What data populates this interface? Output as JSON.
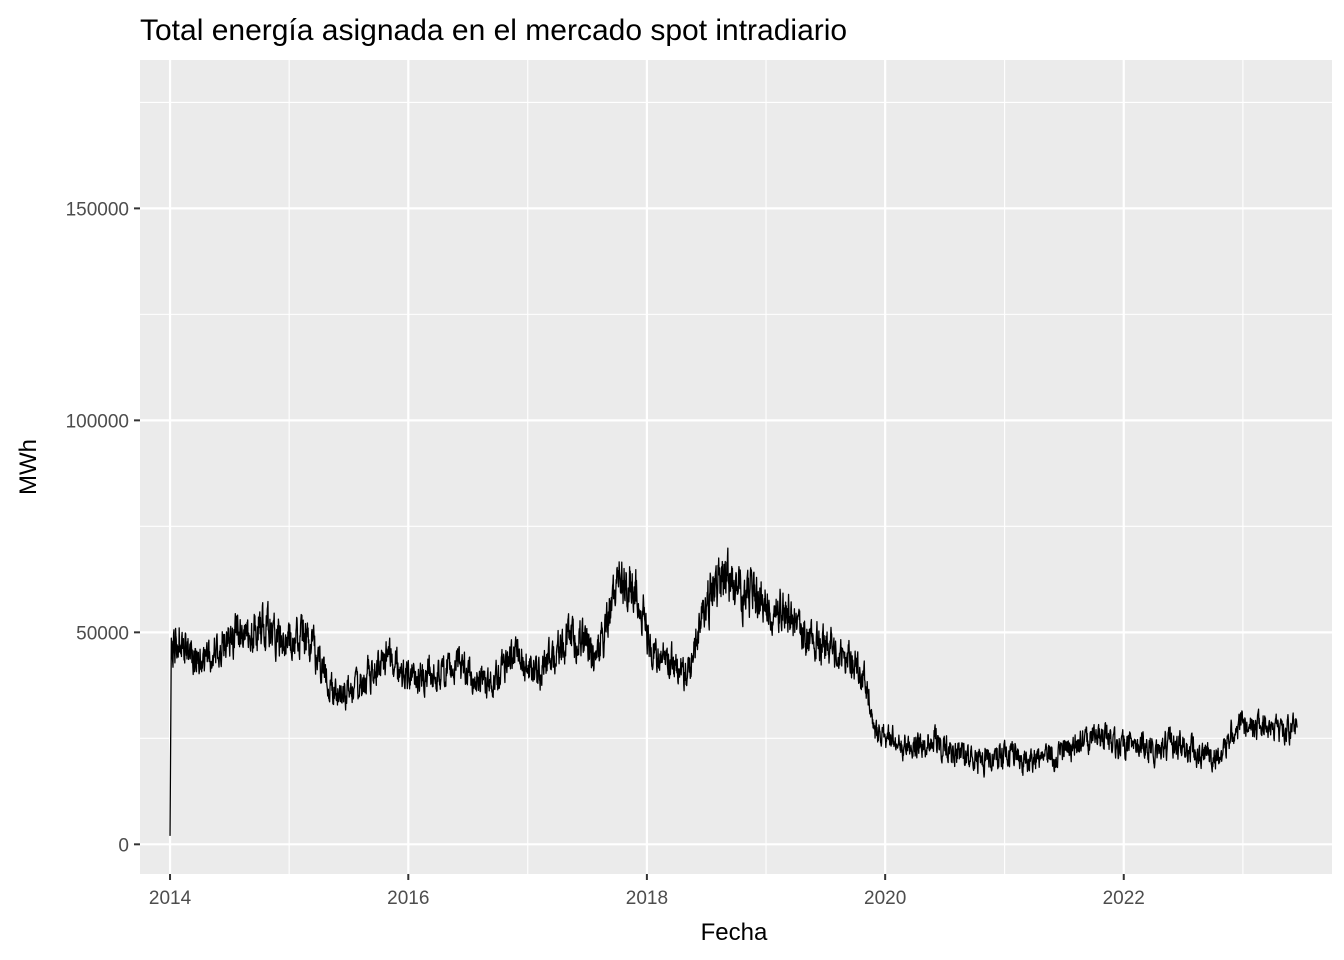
{
  "chart_data": {
    "type": "line",
    "title": "Total energía asignada en el mercado spot intradiario",
    "xlabel": "Fecha",
    "ylabel": "MWh",
    "x_ticks": [
      "2014",
      "2016",
      "2018",
      "2020",
      "2022"
    ],
    "y_ticks": [
      "0",
      "50000",
      "100000",
      "150000"
    ],
    "xlim": [
      "2013-10-01",
      "2023-10-01"
    ],
    "ylim": [
      -7000,
      185000
    ],
    "grid": true,
    "panel_background": "#EBEBEB",
    "line_color": "#000000",
    "series": [
      {
        "x": [
          "2014-01-01",
          "2014-01-05",
          "2014-02-01",
          "2014-03-01",
          "2014-04-01",
          "2014-05-01",
          "2014-06-01",
          "2014-07-01",
          "2014-08-01",
          "2014-09-01",
          "2014-10-01",
          "2014-11-01",
          "2014-12-01",
          "2015-01-01",
          "2015-02-01",
          "2015-03-01",
          "2015-04-01",
          "2015-05-01",
          "2015-06-01",
          "2015-07-01",
          "2015-08-01",
          "2015-09-01",
          "2015-10-01",
          "2015-11-01",
          "2015-12-01",
          "2016-01-01",
          "2016-02-01",
          "2016-03-01",
          "2016-04-01",
          "2016-05-01",
          "2016-06-01",
          "2016-07-01",
          "2016-08-01",
          "2016-09-01",
          "2016-10-01",
          "2016-11-01",
          "2016-12-01",
          "2017-01-01",
          "2017-02-01",
          "2017-03-01",
          "2017-04-01",
          "2017-05-01",
          "2017-06-01",
          "2017-07-01",
          "2017-08-01",
          "2017-09-01",
          "2017-10-01",
          "2017-11-01",
          "2017-12-01",
          "2018-01-01",
          "2018-02-01",
          "2018-03-01",
          "2018-04-01",
          "2018-05-01",
          "2018-06-01",
          "2018-07-01",
          "2018-08-01",
          "2018-09-01",
          "2018-10-01",
          "2018-11-01",
          "2018-12-01",
          "2019-01-01",
          "2019-02-01",
          "2019-03-01",
          "2019-04-01",
          "2019-05-01",
          "2019-06-01",
          "2019-07-01",
          "2019-08-01",
          "2019-09-01",
          "2019-10-01",
          "2019-11-01",
          "2019-12-01",
          "2020-01-01",
          "2020-02-01",
          "2020-03-01",
          "2020-04-01",
          "2020-05-01",
          "2020-06-01",
          "2020-07-01",
          "2020-08-01",
          "2020-09-01",
          "2020-10-01",
          "2020-11-01",
          "2020-12-01",
          "2021-01-01",
          "2021-02-01",
          "2021-03-01",
          "2021-04-01",
          "2021-05-01",
          "2021-06-01",
          "2021-07-01",
          "2021-08-01",
          "2021-09-01",
          "2021-10-01",
          "2021-11-01",
          "2021-12-01",
          "2022-01-01",
          "2022-02-01",
          "2022-03-01",
          "2022-04-01",
          "2022-05-01",
          "2022-06-01",
          "2022-07-01",
          "2022-08-01",
          "2022-09-01",
          "2022-10-01",
          "2022-11-01",
          "2022-12-01",
          "2023-01-01",
          "2023-02-01",
          "2023-03-01",
          "2023-04-01",
          "2023-05-01",
          "2023-06-01"
        ],
        "y": [
          2000,
          48000,
          50000,
          46000,
          44000,
          43000,
          47000,
          49000,
          50000,
          48000,
          52000,
          50000,
          49000,
          47000,
          50000,
          48000,
          44000,
          38000,
          35000,
          36000,
          37000,
          40000,
          42000,
          44000,
          41000,
          40000,
          39000,
          41000,
          40000,
          41000,
          42000,
          40000,
          39000,
          38000,
          39000,
          45000,
          44000,
          42000,
          40000,
          43000,
          46000,
          48000,
          49000,
          47000,
          45000,
          52000,
          60000,
          63000,
          58000,
          50000,
          46000,
          44000,
          42000,
          40000,
          47000,
          58000,
          62000,
          63000,
          60000,
          59000,
          58000,
          57000,
          56000,
          55000,
          52000,
          50000,
          48000,
          47000,
          45000,
          44000,
          42000,
          38000,
          25000,
          26000,
          24000,
          23000,
          22000,
          24000,
          25000,
          23000,
          21000,
          20000,
          19000,
          20000,
          21000,
          21000,
          22000,
          20000,
          20000,
          21000,
          20000,
          22000,
          23000,
          24000,
          26000,
          25000,
          24000,
          23000,
          24000,
          23000,
          22000,
          23000,
          24000,
          23000,
          22000,
          21000,
          20000,
          22000,
          27000,
          28000,
          27000,
          28000,
          26000,
          27000,
          28000
        ]
      }
    ]
  }
}
